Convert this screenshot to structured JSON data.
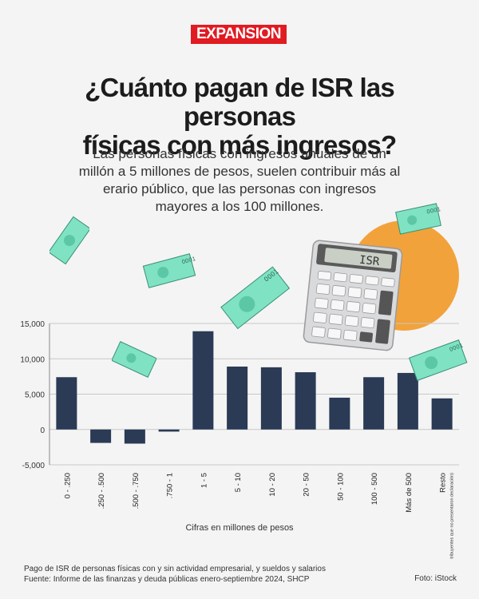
{
  "logo": "EXPANSION",
  "title_line1": "¿Cuánto pagan de ISR las personas",
  "title_line2": "físicas con más ingresos?",
  "subtitle": "Las personas físicas con ingresos anuales de un millón a 5 millones de pesos, suelen contribuir más al erario público, que las personas con ingresos mayores a los 100 millones.",
  "calculator_display": "ISR",
  "bill_label": "0001",
  "footer_line1": "Pago de ISR de personas físicas con y sin actividad empresarial, y sueldos y salarios",
  "footer_line2": "Fuente: Informe de las finanzas y deuda públicas enero-septiembre 2024, SHCP",
  "photo_credit": "Foto: iStock",
  "colors": {
    "bar": "#2b3a55",
    "accent": "#e01b22",
    "orange": "#f2a23a",
    "bill": "#7fe3c3"
  },
  "chart_data": {
    "type": "bar",
    "categories": [
      "0 - .250",
      ".250 - .500",
      ".500 - .750",
      ".750 - 1",
      "1 - 5",
      "5 - 10",
      "10 - 20",
      "20 - 50",
      "50 - 100",
      "100 - 500",
      "Más de 500",
      "Resto"
    ],
    "category_note": "(contribuyentes que no presentaron declaración)",
    "values": [
      7400,
      -1900,
      -2000,
      -300,
      13900,
      8900,
      8800,
      8100,
      4500,
      7400,
      8000,
      4400
    ],
    "yticks": [
      -5000,
      0,
      5000,
      10000,
      15000
    ],
    "ytick_labels": [
      "-5,000",
      "0",
      "5,000",
      "10,000",
      "15,000"
    ],
    "ylim": [
      -5000,
      15000
    ],
    "xlabel": "Cifras en millones de pesos",
    "ylabel": "",
    "grid": true
  }
}
